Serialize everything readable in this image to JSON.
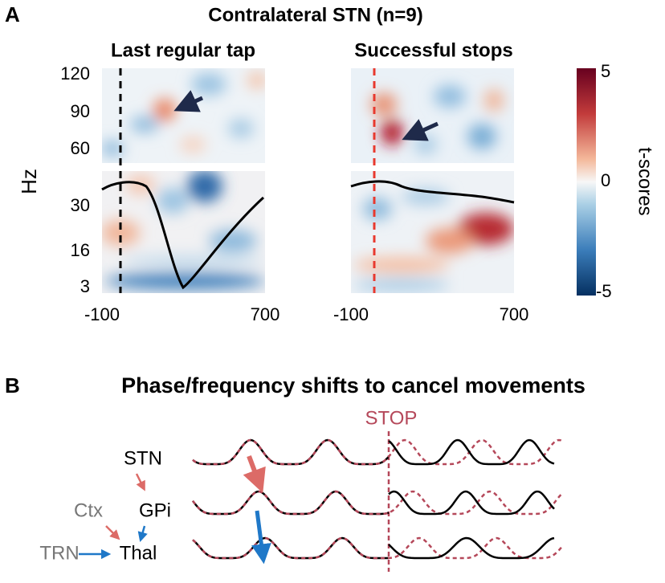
{
  "panel_a": {
    "label": "A",
    "title": "Contralateral STN (n=9)",
    "y_label": "Hz",
    "yticks": [
      "120",
      "90",
      "60",
      "30",
      "16",
      "3"
    ],
    "left": {
      "title": "Last regular tap",
      "xticks": [
        "-100",
        "700"
      ]
    },
    "right": {
      "title": "Successful stops",
      "xticks": [
        "-100",
        "700"
      ]
    },
    "colorbar": {
      "label": "t-scores",
      "ticks": [
        "5",
        "0",
        "-5"
      ]
    }
  },
  "panel_b": {
    "label": "B",
    "title": "Phase/frequency shifts to cancel movements",
    "stop": "STOP",
    "nodes": [
      "STN",
      "GPi",
      "Thal",
      "Ctx",
      "TRN"
    ]
  }
}
